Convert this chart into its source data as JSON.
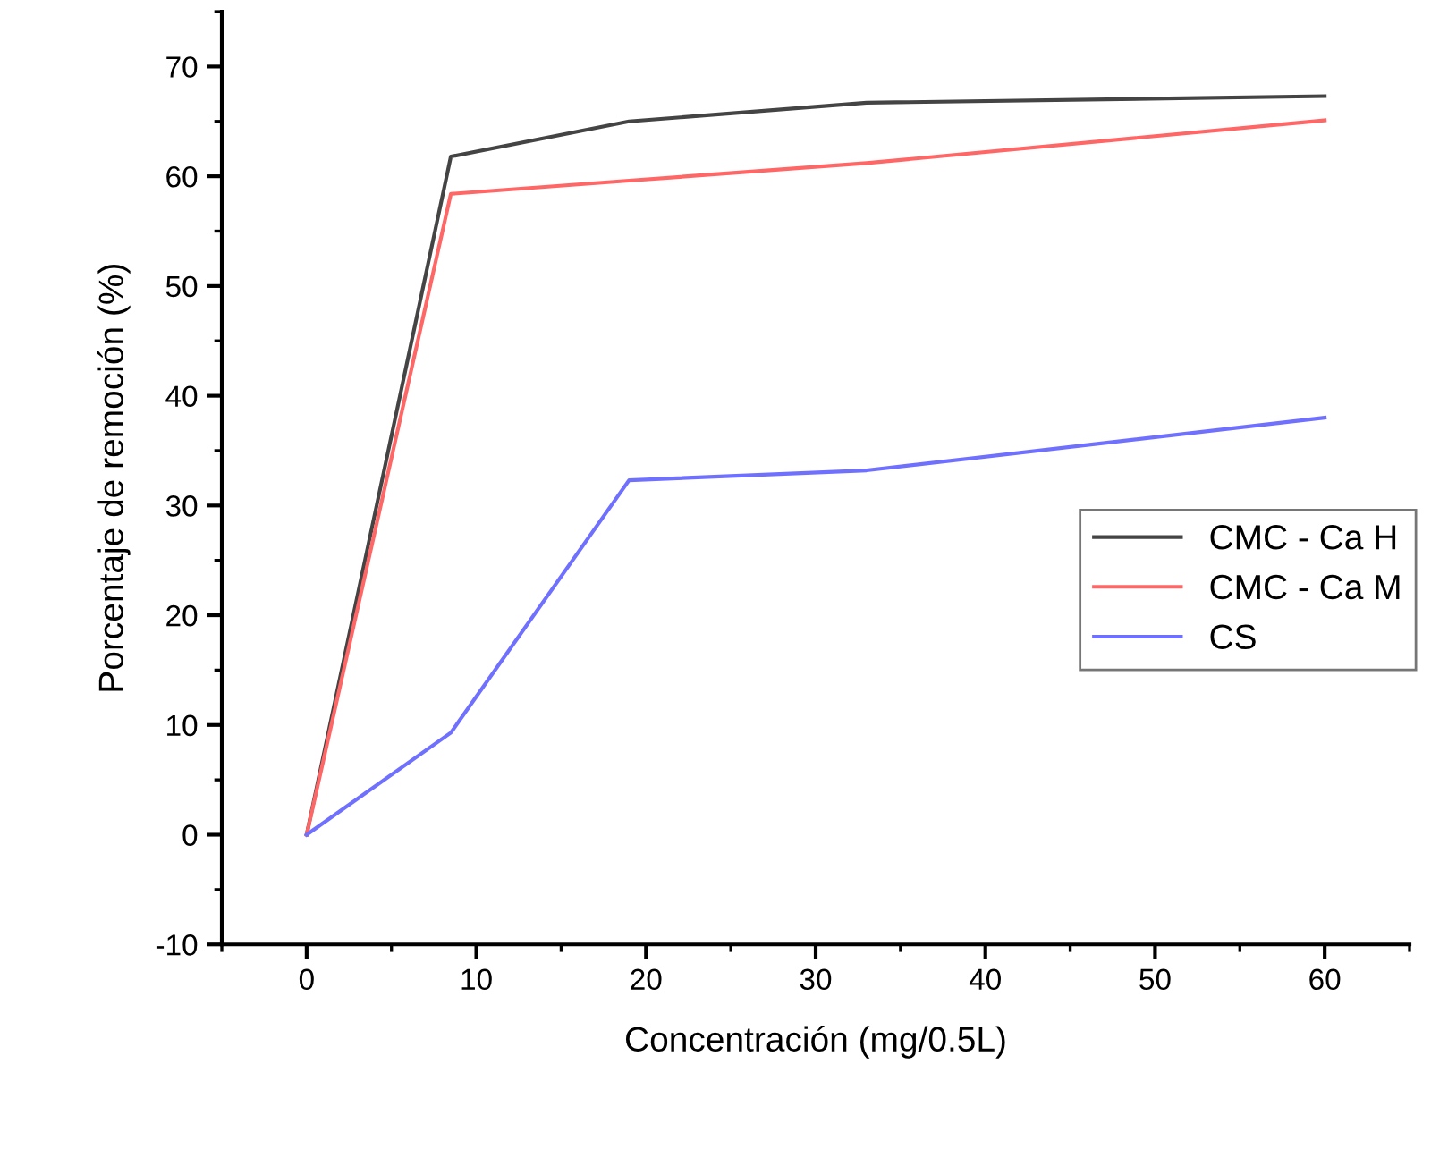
{
  "chart_data": {
    "type": "line",
    "xlabel": "Concentración (mg/0.5L)",
    "ylabel": "Porcentaje de remoción (%)",
    "x": [
      0,
      8.5,
      19,
      33,
      60
    ],
    "series": [
      {
        "name": "CMC - Ca H",
        "color": "#444444",
        "values": [
          0,
          61.8,
          65.0,
          66.7,
          67.3
        ]
      },
      {
        "name": "CMC - Ca M",
        "color": "#ff6666",
        "values": [
          0,
          58.4,
          59.6,
          61.2,
          65.1
        ]
      },
      {
        "name": "CS",
        "color": "#7070ff",
        "values": [
          0,
          9.3,
          32.3,
          33.2,
          38.0
        ]
      }
    ],
    "xlim": [
      -5,
      65
    ],
    "ylim": [
      -10,
      75
    ],
    "xticks": [
      0,
      10,
      20,
      30,
      40,
      50,
      60
    ],
    "yticks": [
      -10,
      0,
      10,
      20,
      30,
      40,
      50,
      60,
      70
    ],
    "grid": false,
    "legend": "right",
    "marker": "none",
    "line_style": "solid"
  }
}
